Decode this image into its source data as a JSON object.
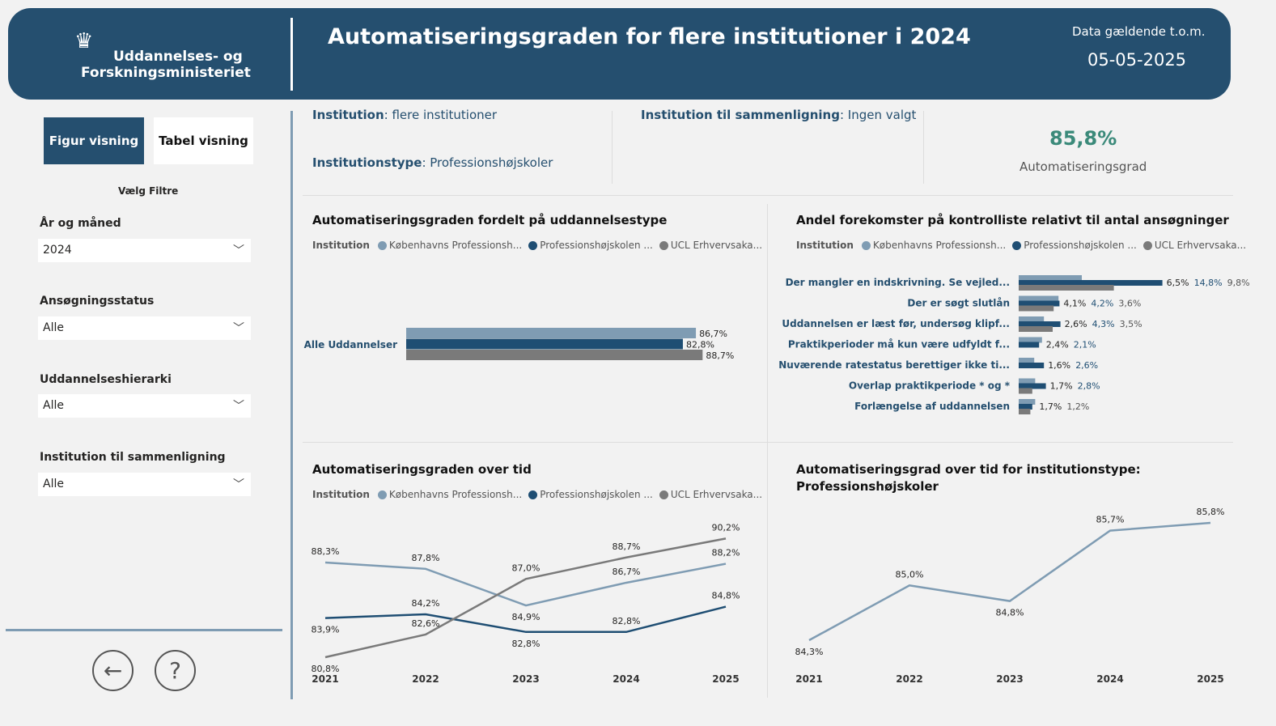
{
  "header": {
    "logo_line1": "Uddannelses- og",
    "logo_line2": "Forskningsministeriet",
    "title": "Automatiseringsgraden for flere institutioner i 2024",
    "date_label": "Data gældende t.o.m.",
    "date_value": "05-05-2025"
  },
  "sidebar": {
    "btn_figure": "Figur visning",
    "btn_table": "Tabel visning",
    "filters_title": "Vælg Filtre",
    "filters": [
      {
        "label": "År og måned",
        "value": "2024"
      },
      {
        "label": "Ansøgningsstatus",
        "value": "Alle"
      },
      {
        "label": "Uddannelseshierarki",
        "value": "Alle"
      },
      {
        "label": "Institution til sammenligning",
        "value": "Alle"
      }
    ]
  },
  "info": {
    "institution_key": "Institution",
    "institution_val": ": flere institutioner",
    "type_key": "Institutionstype",
    "type_val": ": Professionshøjskoler",
    "compare_key": "Institution til sammenligning",
    "compare_val": ": Ingen valgt",
    "kpi_value": "85,8%",
    "kpi_label": "Automatiseringsgrad"
  },
  "legend": {
    "title": "Institution",
    "items": [
      "Københavns Professionsh...",
      "Professionshøjskolen ...",
      "UCL Erhvervsaka..."
    ]
  },
  "colors": {
    "s1": "#7f9cb3",
    "s2": "#1f4e73",
    "s3": "#7a7a7a",
    "banner": "#254f6f"
  },
  "chart_data": [
    {
      "type": "bar",
      "title": "Automatiseringsgraden fordelt på uddannelsestype",
      "categories": [
        "Alle Uddannelser"
      ],
      "series": [
        {
          "name": "Københavns Professionsh...",
          "values": [
            86.7
          ],
          "labels": [
            "86,7%"
          ]
        },
        {
          "name": "Professionshøjskolen ...",
          "values": [
            82.8
          ],
          "labels": [
            "82,8%"
          ]
        },
        {
          "name": "UCL Erhvervsaka...",
          "values": [
            88.7
          ],
          "labels": [
            "88,7%"
          ]
        }
      ]
    },
    {
      "type": "bar",
      "title": "Andel forekomster på kontrolliste relativt til antal ansøgninger",
      "categories": [
        "Der mangler en indskrivning. Se vejled...",
        "Der er søgt slutlån",
        "Uddannelsen er læst før, undersøg klipf...",
        "Praktikperioder må kun være udfyldt f...",
        "Nuværende ratestatus berettiger ikke ti...",
        "Overlap praktikperiode * og *",
        "Forlængelse af uddannelsen"
      ],
      "series": [
        {
          "name": "Københavns Professionsh...",
          "values": [
            6.5,
            4.1,
            2.6,
            2.4,
            1.6,
            1.7,
            1.7
          ],
          "labels": [
            "6,5%",
            "4,1%",
            "2,6%",
            "2,4%",
            "1,6%",
            "1,7%",
            "1,7%"
          ]
        },
        {
          "name": "Professionshøjskolen ...",
          "values": [
            14.8,
            4.2,
            4.3,
            2.1,
            2.6,
            2.8,
            1.4
          ],
          "labels": [
            "14,8%",
            "4,2%",
            "4,3%",
            "2,1%",
            "2,6%",
            "2,8%",
            ""
          ]
        },
        {
          "name": "UCL Erhvervsaka...",
          "values": [
            9.8,
            3.6,
            3.5,
            0,
            0,
            1.4,
            1.2
          ],
          "labels": [
            "9,8%",
            "3,6%",
            "3,5%",
            "",
            "",
            "",
            "1,2%"
          ]
        }
      ]
    },
    {
      "type": "line",
      "title": "Automatiseringsgraden over tid",
      "x": [
        "2021",
        "2022",
        "2023",
        "2024",
        "2025"
      ],
      "series": [
        {
          "name": "Københavns Professionsh...",
          "values": [
            88.3,
            87.8,
            84.9,
            86.7,
            88.2
          ],
          "labels": [
            "88,3%",
            "87,8%",
            "84,9%",
            "86,7%",
            "88,2%"
          ],
          "label_pos": [
            "above",
            "above",
            "below",
            "above",
            "above"
          ]
        },
        {
          "name": "Professionshøjskolen ...",
          "values": [
            83.9,
            84.2,
            82.8,
            82.8,
            84.8
          ],
          "labels": [
            "83,9%",
            "84,2%",
            "82,8%",
            "82,8%",
            "84,8%"
          ],
          "label_pos": [
            "below",
            "above",
            "below",
            "above",
            "above"
          ]
        },
        {
          "name": "UCL Erhvervsaka...",
          "values": [
            80.8,
            82.6,
            87.0,
            88.7,
            90.2
          ],
          "labels": [
            "80,8%",
            "82,6%",
            "87,0%",
            "88,7%",
            "90,2%"
          ],
          "label_pos": [
            "below",
            "above",
            "above",
            "above",
            "above"
          ]
        }
      ]
    },
    {
      "type": "line",
      "title": "Automatiseringsgrad over tid for institutionstype:",
      "subtitle": "Professionshøjskoler",
      "x": [
        "2021",
        "2022",
        "2023",
        "2024",
        "2025"
      ],
      "series": [
        {
          "name": "Professionshøjskoler",
          "values": [
            84.3,
            85.0,
            84.8,
            85.7,
            85.8
          ],
          "labels": [
            "84,3%",
            "85,0%",
            "84,8%",
            "85,7%",
            "85,8%"
          ],
          "label_pos": [
            "below",
            "above",
            "below",
            "above",
            "above"
          ]
        }
      ]
    }
  ]
}
